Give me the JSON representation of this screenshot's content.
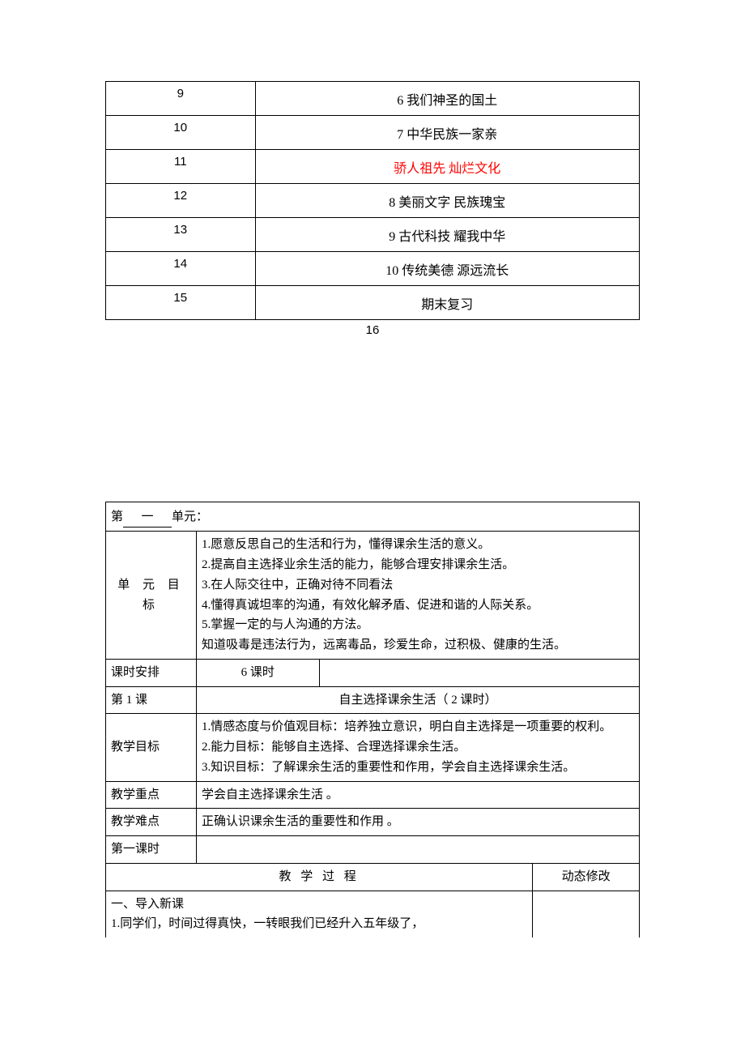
{
  "schedule": {
    "rows": [
      {
        "num": "9",
        "text": "6  我们神圣的国土",
        "red": false
      },
      {
        "num": "10",
        "text": "7  中华民族一家亲",
        "red": false
      },
      {
        "num": "11",
        "text": "骄人祖先  灿烂文化",
        "red": true
      },
      {
        "num": "12",
        "text": "8  美丽文字  民族瑰宝",
        "red": false
      },
      {
        "num": "13",
        "text": "9  古代科技  耀我中华",
        "red": false
      },
      {
        "num": "14",
        "text": "10  传统美德  源远流长",
        "red": false
      },
      {
        "num": "15",
        "text": "期末复习",
        "red": false
      }
    ],
    "trailing_num": "16"
  },
  "unit": {
    "prefix": "第",
    "number": "一",
    "suffix": "单元：",
    "goals_label": "单 元 目 标",
    "goals": "1.愿意反思自己的生活和行为，懂得课余生活的意义。\n2.提高自主选择业余生活的能力，能够合理安排课余生活。\n3.在人际交往中，正确对待不同看法\n4.懂得真诚坦率的沟通，有效化解矛盾、促进和谐的人际关系。\n5.掌握一定的与人沟通的方法。\n知道吸毒是违法行为，远离毒品，珍爱生命，过积极、健康的生活。",
    "hours_label": "课时安排",
    "hours_value": "6 课时",
    "lesson1_label": "第 1 课",
    "lesson1_title": "自主选择课余生活（  2 课时）",
    "teach_goal_label": "教学目标",
    "teach_goal": "1.情感态度与价值观目标：培养独立意识，明白自主选择是一项重要的权利。\n2.能力目标：能够自主选择、合理选择课余生活。\n3.知识目标：了解课余生活的重要性和作用，学会自主选择课余生活。",
    "focus_label": "教学重点",
    "focus_value": "学会自主选择课余生活 。",
    "difficulty_label": "教学难点",
    "difficulty_value": "正确认识课余生活的重要性和作用 。",
    "period1_label": "第一课时",
    "process_header": "教  学  过  程",
    "modify_header": "动态修改",
    "intro": "一、导入新课\n1.同学们，时间过得真快，一转眼我们已经升入五年级了，"
  }
}
